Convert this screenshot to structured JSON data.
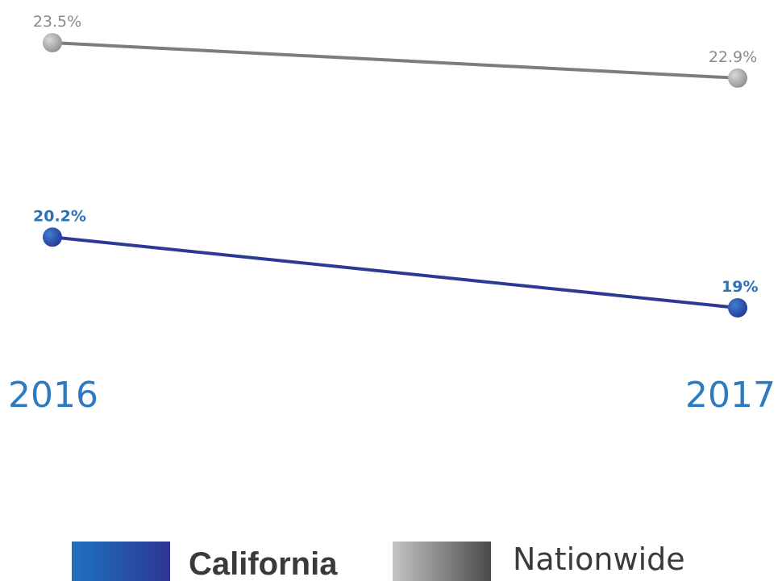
{
  "chart_data": {
    "type": "line",
    "categories": [
      "2016",
      "2017"
    ],
    "series": [
      {
        "name": "Nationwide",
        "values": [
          23.5,
          22.9
        ],
        "labels": [
          "23.5%",
          "22.9%"
        ],
        "color": "#7d7d80"
      },
      {
        "name": "California",
        "values": [
          20.2,
          19.0
        ],
        "labels": [
          "20.2%",
          "19%"
        ],
        "color": "#2d3a94"
      }
    ],
    "title": "",
    "xlabel": "",
    "ylabel": "",
    "legend_position": "bottom",
    "grid": false,
    "y_axis_visible": false
  },
  "colors": {
    "california_line": "#2d3a94",
    "california_label": "#2c72b8",
    "california_swatch_start": "#1f72bf",
    "california_swatch_end": "#2d3592",
    "nationwide_line": "#7d7d80",
    "nationwide_label": "#8a8a8c",
    "nationwide_swatch_start": "#c4c4c6",
    "nationwide_swatch_end": "#4a4a4c",
    "year_label": "#2e7abf"
  }
}
